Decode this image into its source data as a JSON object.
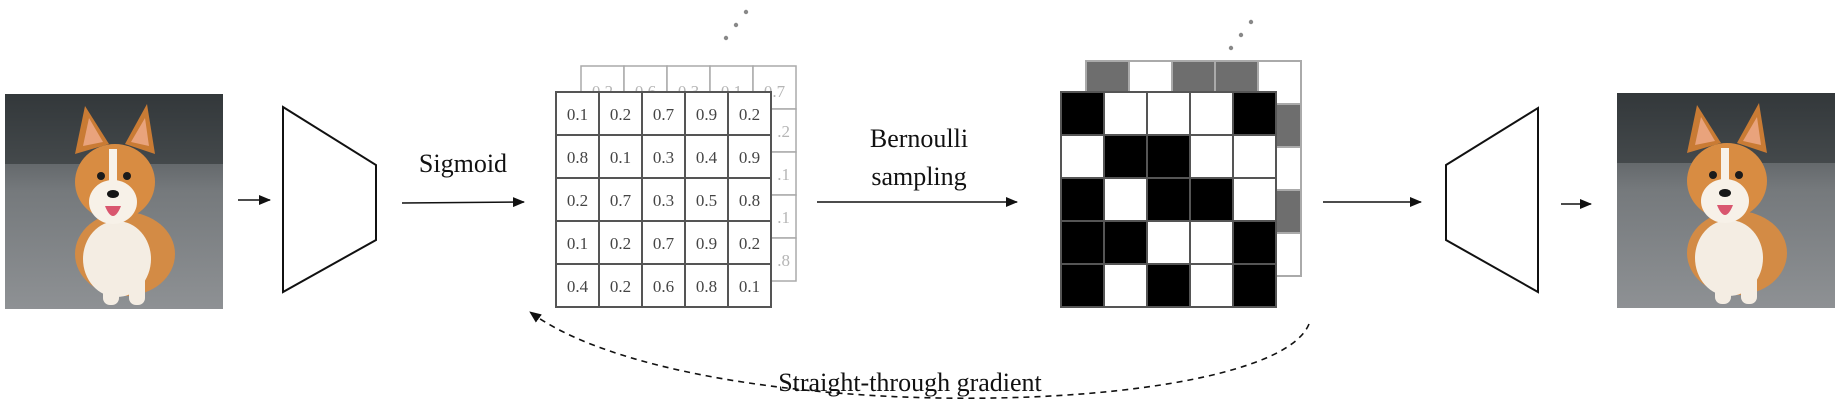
{
  "labels": {
    "sigmoid": "Sigmoid",
    "bernoulli_line1": "Bernoulli",
    "bernoulli_line2": "sampling",
    "gradient": "Straight-through gradient"
  },
  "probability_grid_front": [
    [
      "0.1",
      "0.2",
      "0.7",
      "0.9",
      "0.2"
    ],
    [
      "0.8",
      "0.1",
      "0.3",
      "0.4",
      "0.9"
    ],
    [
      "0.2",
      "0.7",
      "0.3",
      "0.5",
      "0.8"
    ],
    [
      "0.1",
      "0.2",
      "0.7",
      "0.9",
      "0.2"
    ],
    [
      "0.4",
      "0.2",
      "0.6",
      "0.8",
      "0.1"
    ]
  ],
  "probability_grid_back_visible": {
    "top_row": [
      "0.2",
      "0.6",
      "0.3",
      "0.1",
      "0.7"
    ],
    "right_column": [
      ".2",
      ".1",
      ".1",
      ".8"
    ]
  },
  "binary_grid_front": [
    [
      1,
      0,
      0,
      0,
      1
    ],
    [
      0,
      1,
      1,
      0,
      0
    ],
    [
      1,
      0,
      1,
      1,
      0
    ],
    [
      1,
      1,
      0,
      0,
      1
    ],
    [
      1,
      0,
      1,
      0,
      1
    ]
  ],
  "binary_grid_back_visible": {
    "top_row": [
      1,
      0,
      1,
      1,
      0
    ],
    "right_column": [
      1,
      0,
      1,
      0
    ]
  },
  "colors": {
    "cell_on": "#000000",
    "cell_off": "#ffffff",
    "back_cell_on": "#6e6e6e",
    "grid_line": "#555555",
    "back_grid_line": "#aaaaaa",
    "arrow": "#111111"
  },
  "images": {
    "input": "corgi-photo",
    "output": "corgi-photo"
  }
}
